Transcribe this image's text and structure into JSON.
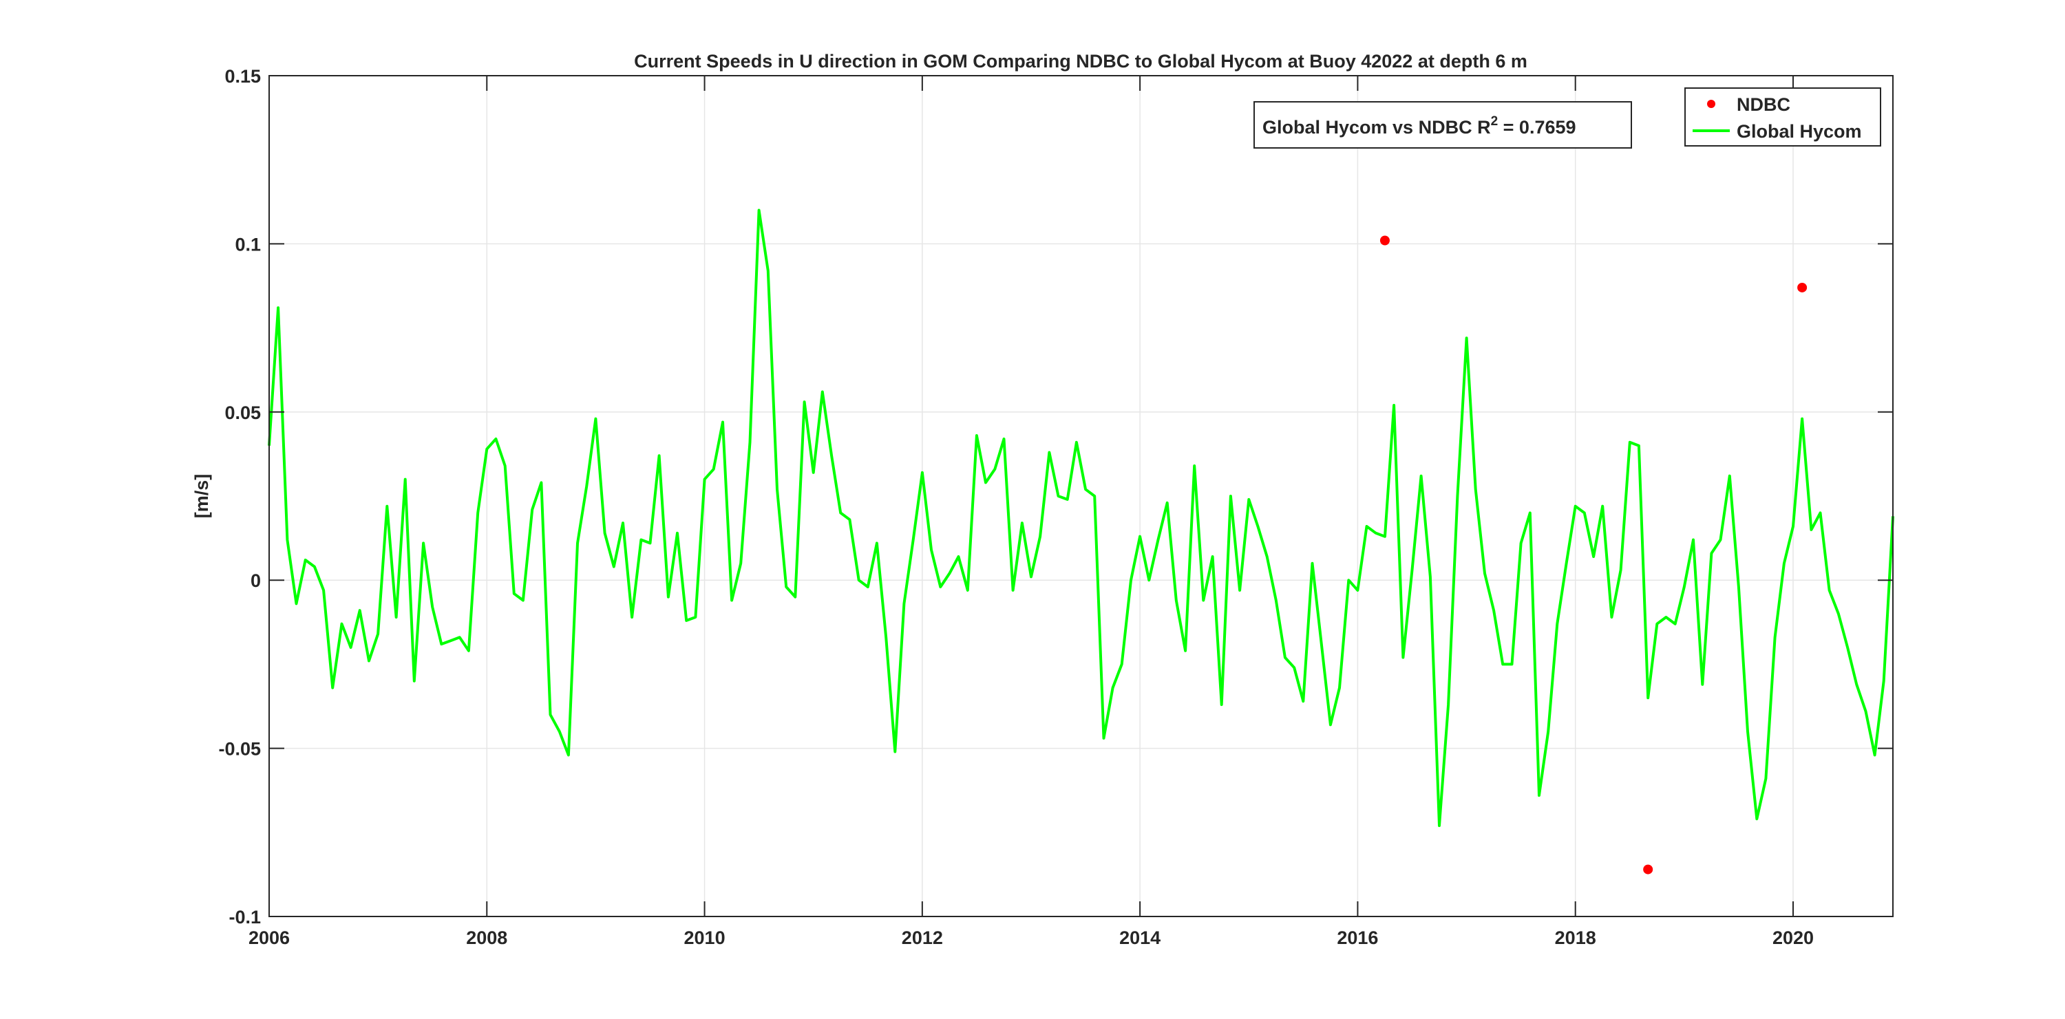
{
  "chart_data": {
    "type": "line",
    "title": "Current Speeds in U direction in GOM Comparing NDBC to Global Hycom at Buoy  42022  at depth  6 m",
    "xlabel": "",
    "ylabel": "[m/s]",
    "xlim": [
      2006,
      2020.917
    ],
    "ylim": [
      -0.1,
      0.15
    ],
    "x_ticks": [
      {
        "value": 2006,
        "label": "2006"
      },
      {
        "value": 2008,
        "label": "2008"
      },
      {
        "value": 2010,
        "label": "2010"
      },
      {
        "value": 2012,
        "label": "2012"
      },
      {
        "value": 2014,
        "label": "2014"
      },
      {
        "value": 2016,
        "label": "2016"
      },
      {
        "value": 2018,
        "label": "2018"
      },
      {
        "value": 2020,
        "label": "2020"
      }
    ],
    "y_ticks": [
      {
        "value": 0.15,
        "label": "0.15"
      },
      {
        "value": 0.1,
        "label": "0.1"
      },
      {
        "value": 0.05,
        "label": "0.05"
      },
      {
        "value": 0,
        "label": "0"
      },
      {
        "value": -0.05,
        "label": "-0.05"
      },
      {
        "value": -0.1,
        "label": "-0.1"
      }
    ],
    "grid": true,
    "legend_position": "top-right",
    "annotation": {
      "text": "Global Hycom vs NDBC R",
      "sup": "2",
      "suffix": " = 0.7659"
    },
    "series": [
      {
        "name": "NDBC",
        "style": "markers",
        "color": "#ff0000",
        "x": [
          2016.25,
          2018.667,
          2020.083
        ],
        "y": [
          0.101,
          -0.086,
          0.087
        ]
      },
      {
        "name": "Global Hycom",
        "style": "line",
        "color": "#00ff00",
        "x": [
          2006.0,
          2006.083,
          2006.167,
          2006.25,
          2006.333,
          2006.417,
          2006.5,
          2006.583,
          2006.667,
          2006.75,
          2006.833,
          2006.917,
          2007.0,
          2007.083,
          2007.167,
          2007.25,
          2007.333,
          2007.417,
          2007.5,
          2007.583,
          2007.667,
          2007.75,
          2007.833,
          2007.917,
          2008.0,
          2008.083,
          2008.167,
          2008.25,
          2008.333,
          2008.417,
          2008.5,
          2008.583,
          2008.667,
          2008.75,
          2008.833,
          2008.917,
          2009.0,
          2009.083,
          2009.167,
          2009.25,
          2009.333,
          2009.417,
          2009.5,
          2009.583,
          2009.667,
          2009.75,
          2009.833,
          2009.917,
          2010.0,
          2010.083,
          2010.167,
          2010.25,
          2010.333,
          2010.417,
          2010.5,
          2010.583,
          2010.667,
          2010.75,
          2010.833,
          2010.917,
          2011.0,
          2011.083,
          2011.167,
          2011.25,
          2011.333,
          2011.417,
          2011.5,
          2011.583,
          2011.667,
          2011.75,
          2011.833,
          2011.917,
          2012.0,
          2012.083,
          2012.167,
          2012.25,
          2012.333,
          2012.417,
          2012.5,
          2012.583,
          2012.667,
          2012.75,
          2012.833,
          2012.917,
          2013.0,
          2013.083,
          2013.167,
          2013.25,
          2013.333,
          2013.417,
          2013.5,
          2013.583,
          2013.667,
          2013.75,
          2013.833,
          2013.917,
          2014.0,
          2014.083,
          2014.167,
          2014.25,
          2014.333,
          2014.417,
          2014.5,
          2014.583,
          2014.667,
          2014.75,
          2014.833,
          2014.917,
          2015.0,
          2015.083,
          2015.167,
          2015.25,
          2015.333,
          2015.417,
          2015.5,
          2015.583,
          2015.667,
          2015.75,
          2015.833,
          2015.917,
          2016.0,
          2016.083,
          2016.167,
          2016.25,
          2016.333,
          2016.417,
          2016.5,
          2016.583,
          2016.667,
          2016.75,
          2016.833,
          2016.917,
          2017.0,
          2017.083,
          2017.167,
          2017.25,
          2017.333,
          2017.417,
          2017.5,
          2017.583,
          2017.667,
          2017.75,
          2017.833,
          2017.917,
          2018.0,
          2018.083,
          2018.167,
          2018.25,
          2018.333,
          2018.417,
          2018.5,
          2018.583,
          2018.667,
          2018.75,
          2018.833,
          2018.917,
          2019.0,
          2019.083,
          2019.167,
          2019.25,
          2019.333,
          2019.417,
          2019.5,
          2019.583,
          2019.667,
          2019.75,
          2019.833,
          2019.917,
          2020.0,
          2020.083,
          2020.167,
          2020.25,
          2020.333,
          2020.417,
          2020.5,
          2020.583,
          2020.667,
          2020.75,
          2020.833,
          2020.917
        ],
        "y": [
          0.04,
          0.081,
          0.012,
          -0.007,
          0.006,
          0.004,
          -0.003,
          -0.032,
          -0.013,
          -0.02,
          -0.009,
          -0.024,
          -0.016,
          0.022,
          -0.011,
          0.03,
          -0.03,
          0.011,
          -0.008,
          -0.019,
          -0.018,
          -0.017,
          -0.021,
          0.02,
          0.039,
          0.042,
          0.034,
          -0.004,
          -0.006,
          0.021,
          0.029,
          -0.04,
          -0.045,
          -0.052,
          0.011,
          0.028,
          0.048,
          0.014,
          0.004,
          0.017,
          -0.011,
          0.012,
          0.011,
          0.037,
          -0.005,
          0.014,
          -0.012,
          -0.011,
          0.03,
          0.033,
          0.047,
          -0.006,
          0.005,
          0.041,
          0.11,
          0.092,
          0.027,
          -0.002,
          -0.005,
          0.053,
          0.032,
          0.056,
          0.037,
          0.02,
          0.018,
          0.0,
          -0.002,
          0.011,
          -0.017,
          -0.051,
          -0.007,
          0.012,
          0.032,
          0.009,
          -0.002,
          0.002,
          0.007,
          -0.003,
          0.043,
          0.029,
          0.033,
          0.042,
          -0.003,
          0.017,
          0.001,
          0.013,
          0.038,
          0.025,
          0.024,
          0.041,
          0.027,
          0.025,
          -0.047,
          -0.032,
          -0.025,
          0.0,
          0.013,
          0.0,
          0.012,
          0.023,
          -0.006,
          -0.021,
          0.034,
          -0.006,
          0.007,
          -0.037,
          0.025,
          -0.003,
          0.024,
          0.016,
          0.007,
          -0.006,
          -0.023,
          -0.026,
          -0.036,
          0.005,
          -0.019,
          -0.043,
          -0.032,
          0.0,
          -0.003,
          0.016,
          0.014,
          0.013,
          0.052,
          -0.023,
          0.003,
          0.031,
          0.001,
          -0.073,
          -0.037,
          0.025,
          0.072,
          0.027,
          0.002,
          -0.009,
          -0.025,
          -0.025,
          0.011,
          0.02,
          -0.064,
          -0.045,
          -0.013,
          0.005,
          0.022,
          0.02,
          0.007,
          0.022,
          -0.011,
          0.003,
          0.041,
          0.04,
          -0.035,
          -0.013,
          -0.011,
          -0.013,
          -0.002,
          0.012,
          -0.031,
          0.008,
          0.012,
          0.031,
          -0.002,
          -0.045,
          -0.071,
          -0.059,
          -0.017,
          0.005,
          0.016,
          0.048,
          0.015,
          0.02,
          -0.003,
          -0.01,
          -0.02,
          -0.031,
          -0.039,
          -0.052,
          -0.03,
          0.019
        ]
      }
    ]
  }
}
